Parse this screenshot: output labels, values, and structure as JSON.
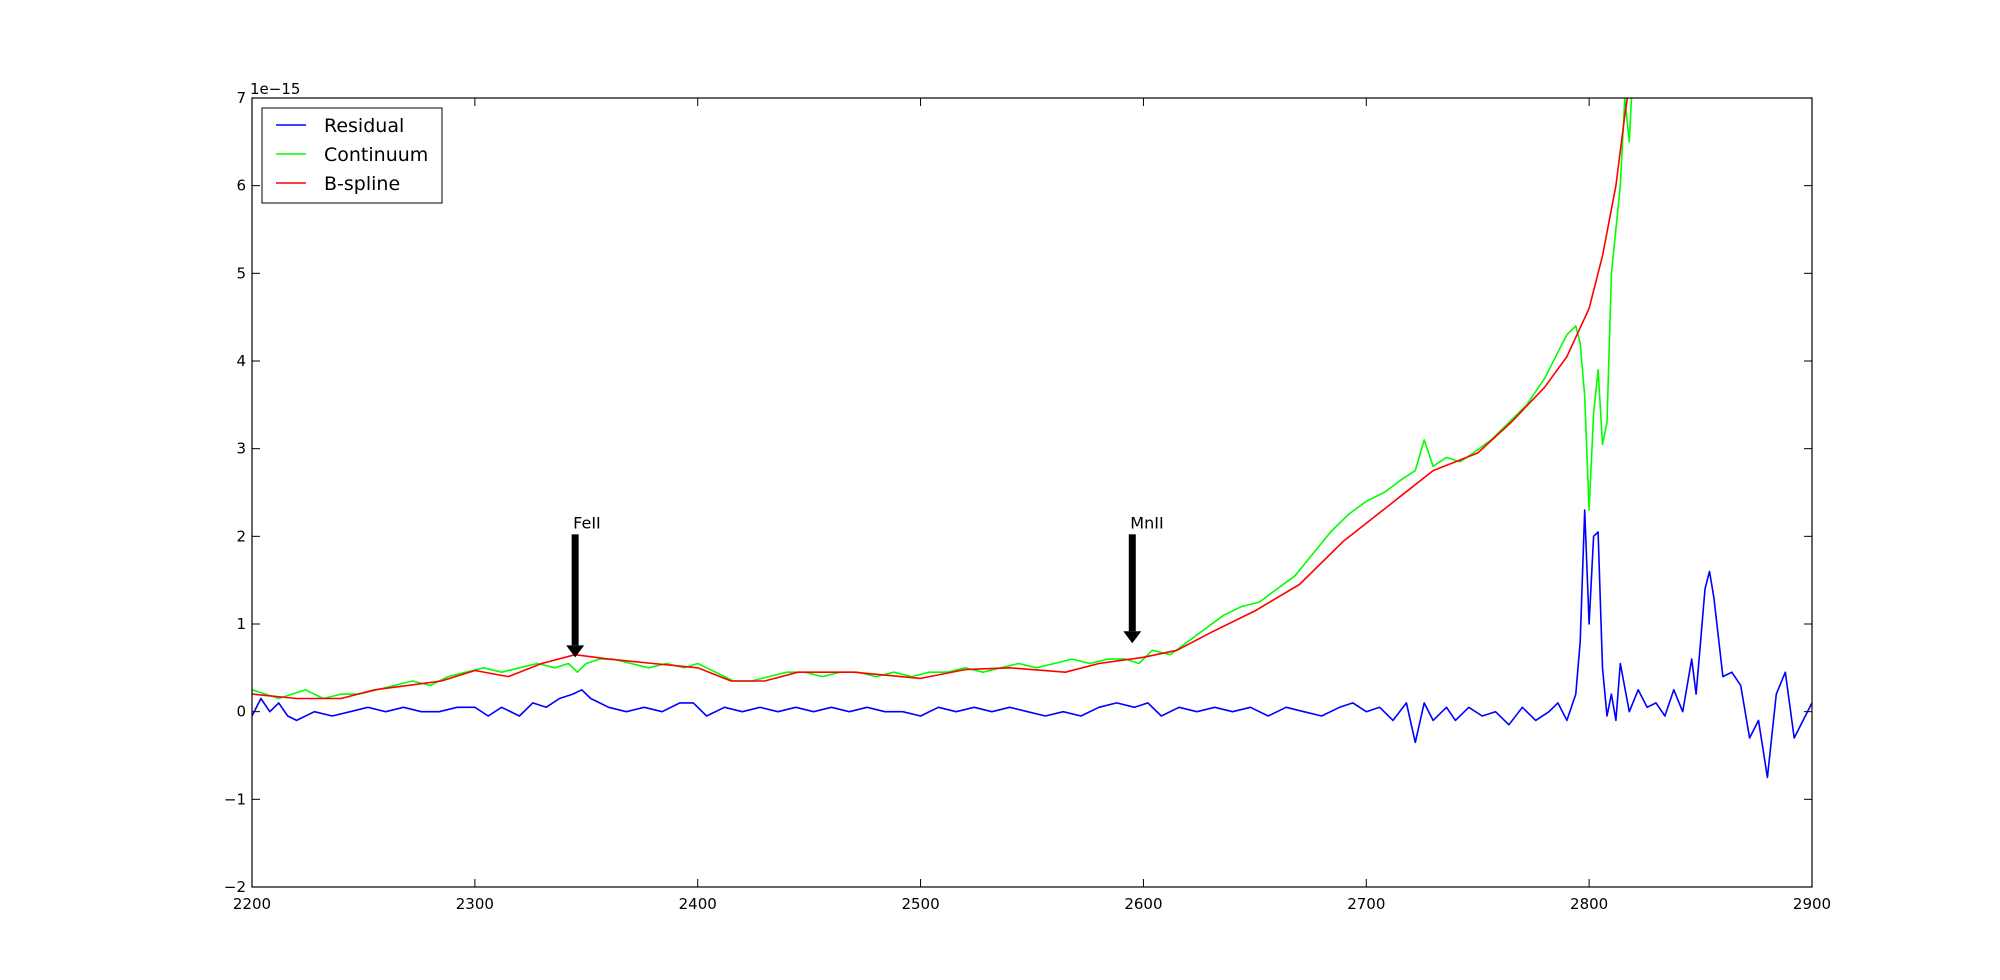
{
  "chart_data": {
    "type": "line",
    "title": "",
    "xlabel": "",
    "ylabel": "",
    "xlim": [
      2200,
      2900
    ],
    "ylim": [
      -2,
      7
    ],
    "y_offset_label": "1e−15",
    "x_ticks": [
      2200,
      2300,
      2400,
      2500,
      2600,
      2700,
      2800,
      2900
    ],
    "y_ticks": [
      -2,
      -1,
      0,
      1,
      2,
      3,
      4,
      5,
      6,
      7
    ],
    "x_tick_labels": [
      "2200",
      "2300",
      "2400",
      "2500",
      "2600",
      "2700",
      "2800",
      "2900"
    ],
    "y_tick_labels": [
      "−2",
      "−1",
      "0",
      "1",
      "2",
      "3",
      "4",
      "5",
      "6",
      "7"
    ],
    "grid": false,
    "legend_position": "top-left",
    "series": [
      {
        "name": "Residual",
        "color": "#0000ff",
        "x": [
          2200,
          2204,
          2208,
          2212,
          2216,
          2220,
          2228,
          2236,
          2244,
          2252,
          2260,
          2268,
          2276,
          2284,
          2292,
          2300,
          2306,
          2312,
          2320,
          2326,
          2332,
          2338,
          2344,
          2348,
          2352,
          2356,
          2360,
          2368,
          2376,
          2384,
          2392,
          2398,
          2404,
          2412,
          2420,
          2428,
          2436,
          2444,
          2452,
          2460,
          2468,
          2476,
          2484,
          2492,
          2500,
          2508,
          2516,
          2524,
          2532,
          2540,
          2548,
          2556,
          2564,
          2572,
          2580,
          2588,
          2596,
          2602,
          2608,
          2616,
          2624,
          2632,
          2640,
          2648,
          2656,
          2664,
          2672,
          2680,
          2688,
          2694,
          2700,
          2706,
          2712,
          2718,
          2722,
          2726,
          2730,
          2736,
          2740,
          2746,
          2752,
          2758,
          2764,
          2770,
          2776,
          2782,
          2786,
          2790,
          2794,
          2796,
          2798,
          2800,
          2802,
          2804,
          2806,
          2808,
          2810,
          2812,
          2814,
          2818,
          2822,
          2826,
          2830,
          2834,
          2838,
          2842,
          2846,
          2848,
          2850,
          2852,
          2854,
          2856,
          2860,
          2864,
          2868,
          2872,
          2876,
          2880,
          2884,
          2888,
          2892,
          2896,
          2900
        ],
        "y": [
          -0.05,
          0.15,
          0.0,
          0.1,
          -0.05,
          -0.1,
          0.0,
          -0.05,
          0.0,
          0.05,
          0.0,
          0.05,
          0.0,
          0.0,
          0.05,
          0.05,
          -0.05,
          0.05,
          -0.05,
          0.1,
          0.05,
          0.15,
          0.2,
          0.25,
          0.15,
          0.1,
          0.05,
          0.0,
          0.05,
          0.0,
          0.1,
          0.1,
          -0.05,
          0.05,
          0.0,
          0.05,
          0.0,
          0.05,
          0.0,
          0.05,
          0.0,
          0.05,
          0.0,
          0.0,
          -0.05,
          0.05,
          0.0,
          0.05,
          0.0,
          0.05,
          0.0,
          -0.05,
          0.0,
          -0.05,
          0.05,
          0.1,
          0.05,
          0.1,
          -0.05,
          0.05,
          0.0,
          0.05,
          0.0,
          0.05,
          -0.05,
          0.05,
          0.0,
          -0.05,
          0.05,
          0.1,
          0.0,
          0.05,
          -0.1,
          0.1,
          -0.35,
          0.1,
          -0.1,
          0.05,
          -0.1,
          0.05,
          -0.05,
          0.0,
          -0.15,
          0.05,
          -0.1,
          0.0,
          0.1,
          -0.1,
          0.2,
          0.8,
          2.3,
          1.0,
          2.0,
          2.05,
          0.5,
          -0.05,
          0.2,
          -0.1,
          0.55,
          0.0,
          0.25,
          0.05,
          0.1,
          -0.05,
          0.25,
          0.0,
          0.6,
          0.2,
          0.8,
          1.4,
          1.6,
          1.3,
          0.4,
          0.45,
          0.3,
          -0.3,
          -0.1,
          -0.75,
          0.2,
          0.45,
          -0.3,
          -0.1,
          0.1
        ]
      },
      {
        "name": "Continuum",
        "color": "#00ff00",
        "x": [
          2200,
          2206,
          2212,
          2218,
          2224,
          2232,
          2240,
          2248,
          2256,
          2264,
          2272,
          2280,
          2288,
          2296,
          2304,
          2312,
          2320,
          2328,
          2336,
          2342,
          2346,
          2350,
          2356,
          2362,
          2370,
          2378,
          2386,
          2394,
          2400,
          2408,
          2416,
          2424,
          2432,
          2440,
          2448,
          2456,
          2464,
          2472,
          2480,
          2488,
          2496,
          2504,
          2512,
          2520,
          2528,
          2536,
          2544,
          2552,
          2560,
          2568,
          2576,
          2584,
          2592,
          2598,
          2604,
          2612,
          2620,
          2628,
          2636,
          2644,
          2652,
          2660,
          2668,
          2676,
          2684,
          2692,
          2700,
          2708,
          2716,
          2722,
          2726,
          2730,
          2736,
          2742,
          2748,
          2756,
          2764,
          2772,
          2780,
          2786,
          2790,
          2794,
          2796,
          2798,
          2800,
          2802,
          2804,
          2806,
          2808,
          2810,
          2812,
          2814,
          2816,
          2818,
          2820
        ],
        "y": [
          0.25,
          0.2,
          0.15,
          0.2,
          0.25,
          0.15,
          0.2,
          0.2,
          0.25,
          0.3,
          0.35,
          0.3,
          0.4,
          0.45,
          0.5,
          0.45,
          0.5,
          0.55,
          0.5,
          0.55,
          0.45,
          0.55,
          0.6,
          0.6,
          0.55,
          0.5,
          0.55,
          0.5,
          0.55,
          0.45,
          0.35,
          0.35,
          0.4,
          0.45,
          0.45,
          0.4,
          0.45,
          0.45,
          0.4,
          0.45,
          0.4,
          0.45,
          0.45,
          0.5,
          0.45,
          0.5,
          0.55,
          0.5,
          0.55,
          0.6,
          0.55,
          0.6,
          0.6,
          0.55,
          0.7,
          0.65,
          0.8,
          0.95,
          1.1,
          1.2,
          1.25,
          1.4,
          1.55,
          1.8,
          2.05,
          2.25,
          2.4,
          2.5,
          2.65,
          2.75,
          3.1,
          2.8,
          2.9,
          2.85,
          2.95,
          3.1,
          3.3,
          3.5,
          3.8,
          4.1,
          4.3,
          4.4,
          4.2,
          3.6,
          2.3,
          3.4,
          3.9,
          3.05,
          3.3,
          5.0,
          5.5,
          6.0,
          7.0,
          6.5,
          7.5
        ]
      },
      {
        "name": "B-spline",
        "color": "#ff0000",
        "x": [
          2200,
          2220,
          2240,
          2255,
          2270,
          2285,
          2300,
          2315,
          2330,
          2345,
          2360,
          2380,
          2400,
          2415,
          2430,
          2445,
          2470,
          2500,
          2520,
          2540,
          2565,
          2580,
          2600,
          2615,
          2630,
          2650,
          2670,
          2690,
          2710,
          2730,
          2750,
          2765,
          2780,
          2790,
          2800,
          2806,
          2812,
          2816,
          2820
        ],
        "y": [
          0.2,
          0.15,
          0.15,
          0.25,
          0.3,
          0.35,
          0.47,
          0.4,
          0.55,
          0.65,
          0.6,
          0.55,
          0.5,
          0.35,
          0.35,
          0.45,
          0.45,
          0.38,
          0.48,
          0.5,
          0.45,
          0.55,
          0.62,
          0.7,
          0.9,
          1.15,
          1.45,
          1.95,
          2.35,
          2.75,
          2.95,
          3.3,
          3.7,
          4.05,
          4.6,
          5.2,
          6.0,
          6.8,
          7.5
        ]
      }
    ],
    "annotations": [
      {
        "label": "FeII",
        "x": 2345,
        "text_y": 2.0,
        "arrow_to_y": 0.62
      },
      {
        "label": "MnII",
        "x": 2595,
        "text_y": 2.0,
        "arrow_to_y": 0.78
      }
    ]
  }
}
